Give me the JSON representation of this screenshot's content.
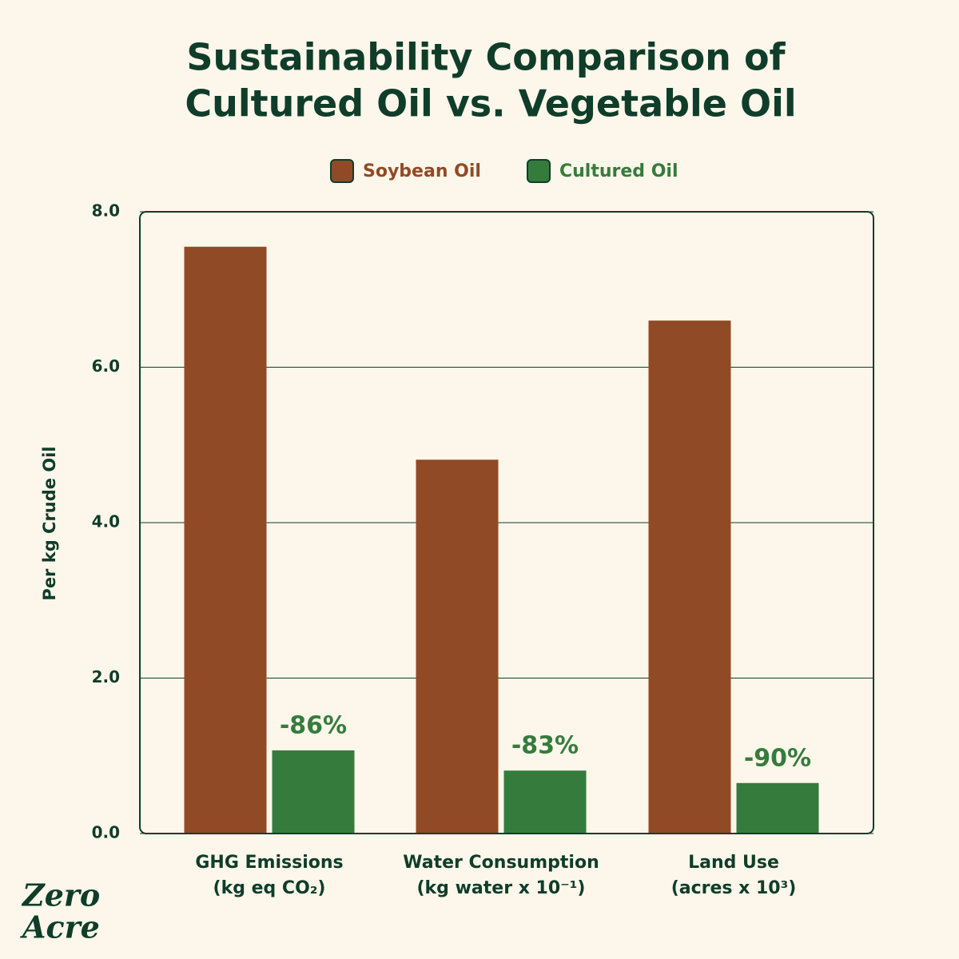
{
  "chart_data": {
    "type": "bar",
    "title": [
      "Sustainability Comparison of",
      "Cultured Oil vs. Vegetable Oil"
    ],
    "y_label": "Per kg Crude Oil",
    "categories": [
      "GHG Emissions",
      "Water Consumption",
      "Land Use"
    ],
    "category_units": [
      "(kg eq CO₂)",
      "(kg water x 10⁻¹)",
      "(acres x 10³)"
    ],
    "series": [
      {
        "name": "Soybean Oil",
        "color": "#914a26",
        "values": [
          7.55,
          4.81,
          6.6
        ]
      },
      {
        "name": "Cultured Oil",
        "color": "#357c3c",
        "values": [
          1.07,
          0.81,
          0.65
        ],
        "annotations": [
          "-86%",
          "-83%",
          "-90%"
        ]
      }
    ],
    "ylim": [
      0,
      8
    ],
    "yticks": [
      {
        "value": 0,
        "label": "0.0"
      },
      {
        "value": 2,
        "label": "2.0"
      },
      {
        "value": 4,
        "label": "4.0"
      },
      {
        "value": 6,
        "label": "6.0"
      },
      {
        "value": 8,
        "label": "8.0"
      }
    ],
    "grid": true,
    "legend": "top",
    "logo": [
      "Zero",
      "Acre"
    ]
  }
}
